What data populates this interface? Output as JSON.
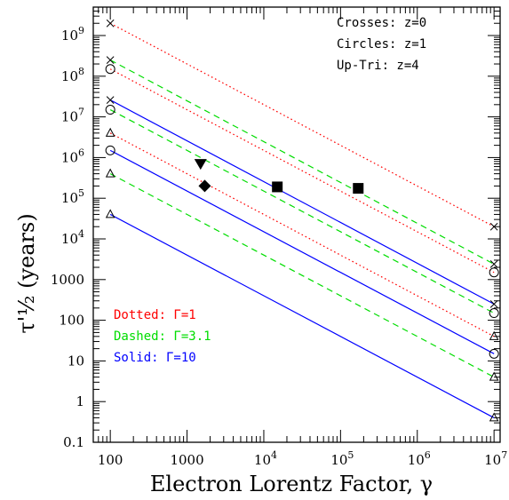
{
  "chart_data": {
    "type": "line",
    "x_scale": "log",
    "y_scale": "log",
    "xlim": [
      60,
      12000000
    ],
    "ylim": [
      0.1,
      5000000000
    ],
    "xlabel": "Electron Lorentz Factor, γ",
    "ylabel": "τ'½ (years)",
    "x_ticks": [
      {
        "value": 100,
        "label": "100",
        "exp": ""
      },
      {
        "value": 1000,
        "label": "1000",
        "exp": ""
      },
      {
        "value": 10000,
        "label": "10",
        "exp": "4"
      },
      {
        "value": 100000,
        "label": "10",
        "exp": "5"
      },
      {
        "value": 1000000,
        "label": "10",
        "exp": "6"
      },
      {
        "value": 10000000,
        "label": "10",
        "exp": "7"
      }
    ],
    "y_ticks": [
      {
        "value": 0.1,
        "label": "0.1",
        "exp": ""
      },
      {
        "value": 1,
        "label": "1",
        "exp": ""
      },
      {
        "value": 10,
        "label": "10",
        "exp": ""
      },
      {
        "value": 100,
        "label": "100",
        "exp": ""
      },
      {
        "value": 1000,
        "label": "1000",
        "exp": ""
      },
      {
        "value": 10000,
        "label": "10",
        "exp": "4"
      },
      {
        "value": 100000,
        "label": "10",
        "exp": "5"
      },
      {
        "value": 1000000,
        "label": "10",
        "exp": "6"
      },
      {
        "value": 10000000,
        "label": "10",
        "exp": "7"
      },
      {
        "value": 100000000,
        "label": "10",
        "exp": "8"
      },
      {
        "value": 1000000000,
        "label": "10",
        "exp": "9"
      }
    ],
    "series": [
      {
        "gamma_label": "Γ=1",
        "z": 0,
        "style": "dotted",
        "color": "#ff0000",
        "marker": "cross",
        "x": [
          100,
          10000000
        ],
        "y": [
          2000000000,
          20000
        ]
      },
      {
        "gamma_label": "Γ=3.1",
        "z": 0,
        "style": "dashed",
        "color": "#00dd00",
        "marker": "cross",
        "x": [
          100,
          10000000
        ],
        "y": [
          250000000,
          2400
        ]
      },
      {
        "gamma_label": "Γ=1",
        "z": 1,
        "style": "dotted",
        "color": "#ff0000",
        "marker": "circle",
        "x": [
          100,
          10000000
        ],
        "y": [
          150000000,
          1500
        ]
      },
      {
        "gamma_label": "Γ=10",
        "z": 0,
        "style": "solid",
        "color": "#0000ff",
        "marker": "cross",
        "x": [
          100,
          10000000
        ],
        "y": [
          26000000,
          250
        ]
      },
      {
        "gamma_label": "Γ=3.1",
        "z": 1,
        "style": "dashed",
        "color": "#00dd00",
        "marker": "circle",
        "x": [
          100,
          10000000
        ],
        "y": [
          15000000,
          150
        ]
      },
      {
        "gamma_label": "Γ=1",
        "z": 4,
        "style": "dotted",
        "color": "#ff0000",
        "marker": "triangle",
        "x": [
          100,
          10000000
        ],
        "y": [
          4000000,
          40
        ]
      },
      {
        "gamma_label": "Γ=10",
        "z": 1,
        "style": "solid",
        "color": "#0000ff",
        "marker": "circle",
        "x": [
          100,
          10000000
        ],
        "y": [
          1500000,
          15
        ]
      },
      {
        "gamma_label": "Γ=3.1",
        "z": 4,
        "style": "dashed",
        "color": "#00dd00",
        "marker": "triangle",
        "x": [
          100,
          10000000
        ],
        "y": [
          400000,
          4
        ]
      },
      {
        "gamma_label": "Γ=10",
        "z": 4,
        "style": "solid",
        "color": "#0000ff",
        "marker": "triangle",
        "x": [
          100,
          10000000
        ],
        "y": [
          40000,
          0.4
        ]
      }
    ],
    "filled_points": [
      {
        "marker": "down-triangle",
        "x": 1500,
        "y": 680000
      },
      {
        "marker": "diamond",
        "x": 1700,
        "y": 200000
      },
      {
        "marker": "square",
        "x": 15000,
        "y": 190000
      },
      {
        "marker": "square",
        "x": 170000,
        "y": 175000
      }
    ],
    "legend_markers": [
      "Crosses: z=0",
      "Circles: z=1",
      "Up-Tri: z=4"
    ],
    "legend_lines": [
      {
        "text": "Dotted: Γ=1",
        "color": "#ff0000"
      },
      {
        "text": "Dashed: Γ=3.1",
        "color": "#00dd00"
      },
      {
        "text": "Solid: Γ=10",
        "color": "#0000ff"
      }
    ],
    "grid": false
  }
}
